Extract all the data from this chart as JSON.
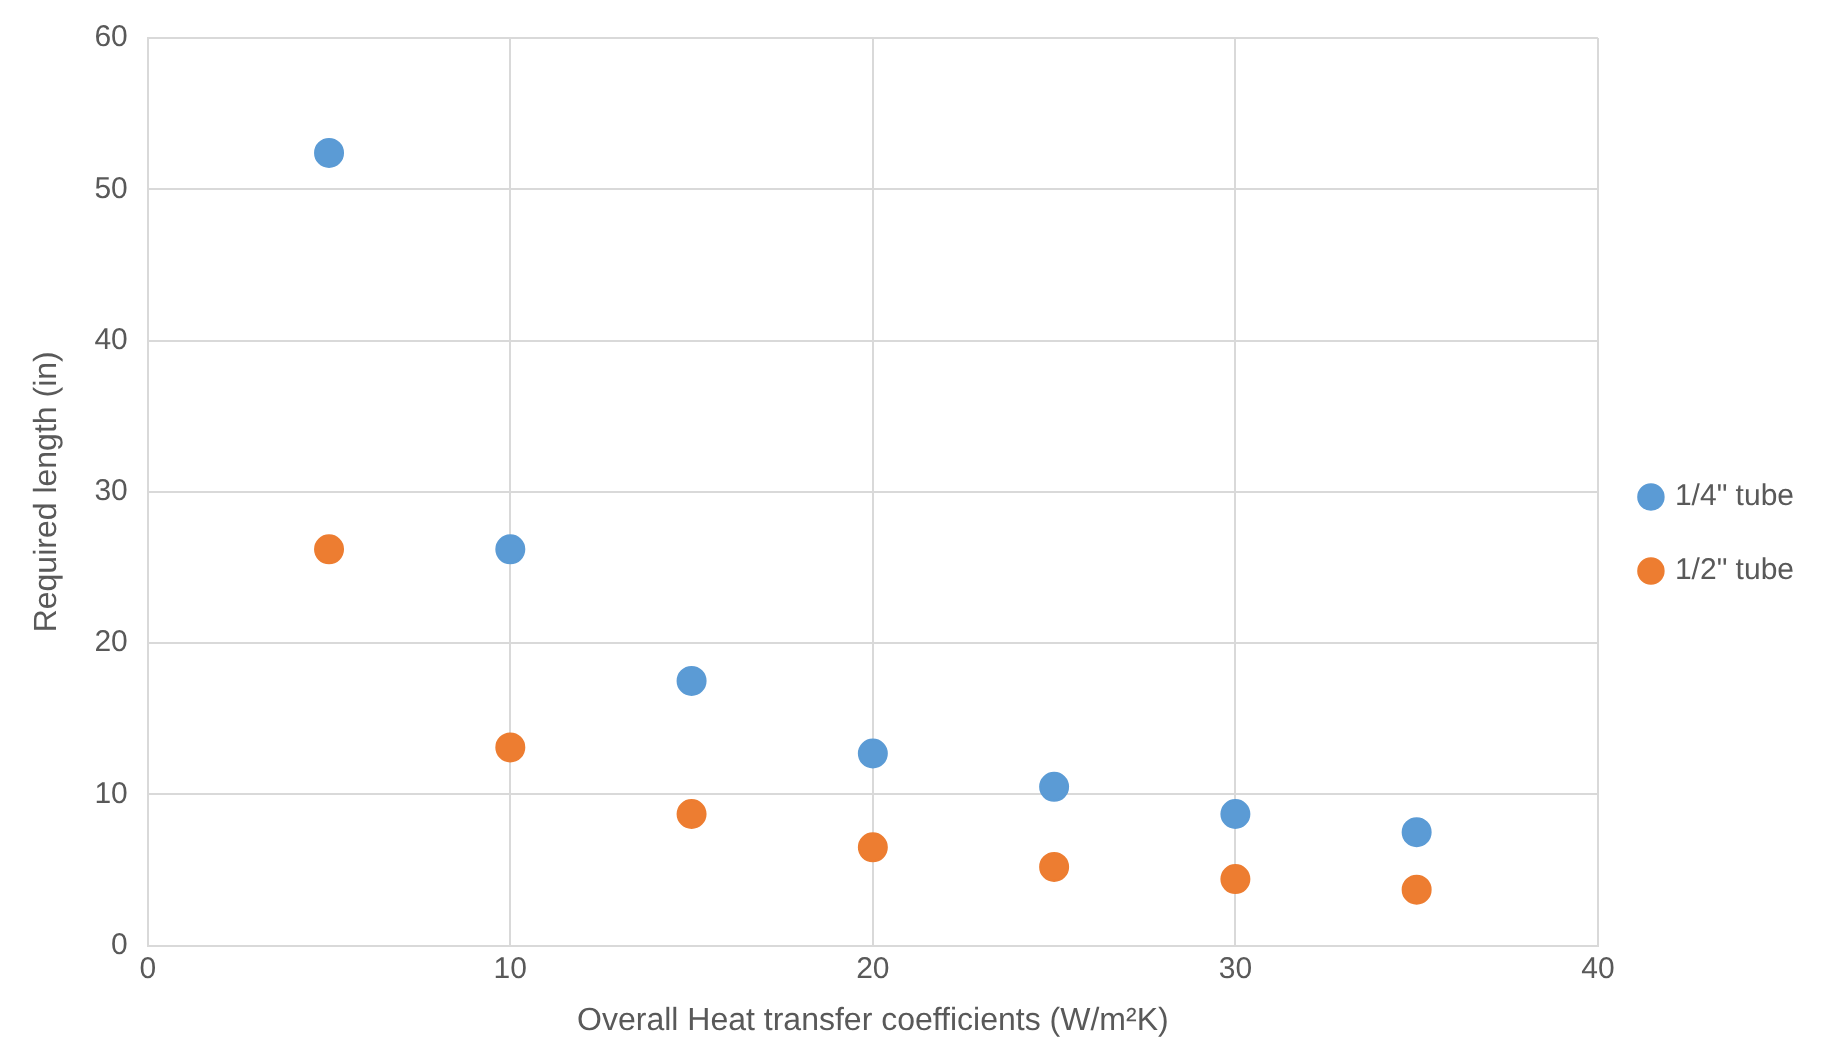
{
  "chart_data": {
    "type": "scatter",
    "xlabel": "Overall Heat transfer coefficients (W/m²K)",
    "ylabel": "Required length (in)",
    "x": [
      5,
      10,
      15,
      20,
      25,
      30,
      35
    ],
    "series": [
      {
        "name": "1/4\" tube",
        "color": "#5b9bd5",
        "values": [
          52.4,
          26.2,
          17.5,
          12.7,
          10.5,
          8.7,
          7.5
        ]
      },
      {
        "name": "1/2\" tube",
        "color": "#ed7d31",
        "values": [
          26.2,
          13.1,
          8.7,
          6.5,
          5.2,
          4.4,
          3.7
        ]
      }
    ],
    "xlim": [
      0,
      40
    ],
    "xticks": [
      0,
      10,
      20,
      30,
      40
    ],
    "ylim": [
      0,
      60
    ],
    "yticks": [
      0,
      10,
      20,
      30,
      40,
      50,
      60
    ],
    "grid": true,
    "legend": "right",
    "marker": "circle"
  }
}
